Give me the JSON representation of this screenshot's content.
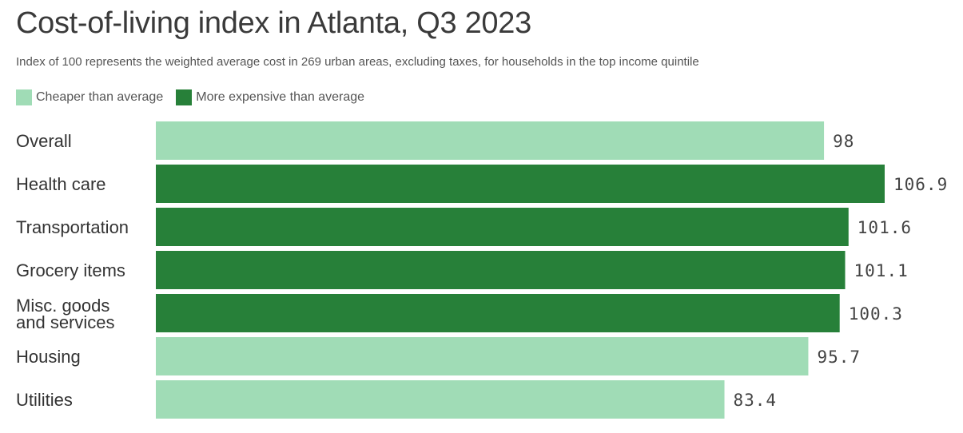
{
  "title": "Cost-of-living index in Atlanta, Q3 2023",
  "subtitle": "Index of 100 represents the weighted average cost in 269 urban areas, excluding taxes, for households in the top income quintile",
  "legend": [
    {
      "label": "Cheaper than average",
      "color": "#a0dcb6"
    },
    {
      "label": "More expensive than average",
      "color": "#278039"
    }
  ],
  "chart_data": {
    "type": "bar",
    "orientation": "horizontal",
    "categories": [
      [
        "Overall"
      ],
      [
        "Health care"
      ],
      [
        "Transportation"
      ],
      [
        "Grocery items"
      ],
      [
        "Misc. goods",
        "and services"
      ],
      [
        "Housing"
      ],
      [
        "Utilities"
      ]
    ],
    "values": [
      98,
      106.9,
      101.6,
      101.1,
      100.3,
      95.7,
      83.4
    ],
    "value_labels": [
      "98",
      "106.9",
      "101.6",
      "101.1",
      "100.3",
      "95.7",
      "83.4"
    ],
    "baseline": 100,
    "xlim": [
      0,
      106.9
    ],
    "colors": {
      "below": "#a0dcb6",
      "above": "#278039"
    },
    "grid": false,
    "legend_position": "top-left"
  }
}
